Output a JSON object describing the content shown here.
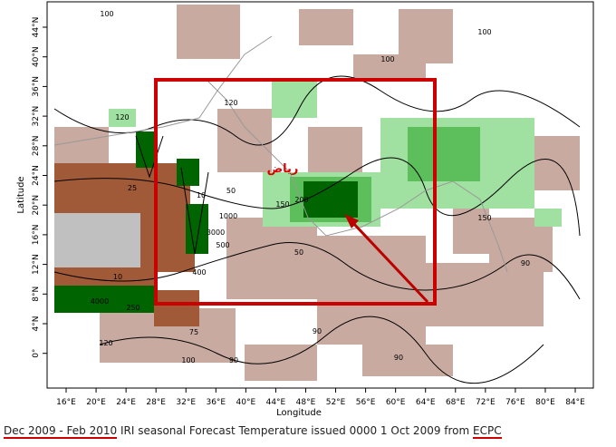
{
  "map": {
    "x_axis": {
      "title": "Longitude",
      "ticks": [
        "16°E",
        "20°E",
        "24°E",
        "28°E",
        "32°E",
        "36°E",
        "40°E",
        "44°E",
        "48°E",
        "52°E",
        "56°E",
        "60°E",
        "64°E",
        "68°E",
        "72°E",
        "76°E",
        "80°E",
        "84°E"
      ]
    },
    "y_axis": {
      "title": "Latitude",
      "ticks": [
        "44°N",
        "40°N",
        "36°N",
        "32°N",
        "28°N",
        "24°N",
        "20°N",
        "16°N",
        "12°N",
        "8°N",
        "4°N",
        "0°"
      ]
    },
    "city_label": "رياض",
    "contour_labels": [
      100,
      100,
      100,
      120,
      120,
      25,
      10,
      50,
      150,
      200,
      1000,
      3000,
      500,
      50,
      150,
      90,
      400,
      10,
      4000,
      250,
      75,
      90,
      90,
      100,
      90,
      120
    ],
    "caption": {
      "period": "Dec 2009 - Feb 2010",
      "text": "IRI seasonal Forecast Temperature issued 0000 1 Oct 2009 from",
      "source": "ECPC"
    }
  }
}
